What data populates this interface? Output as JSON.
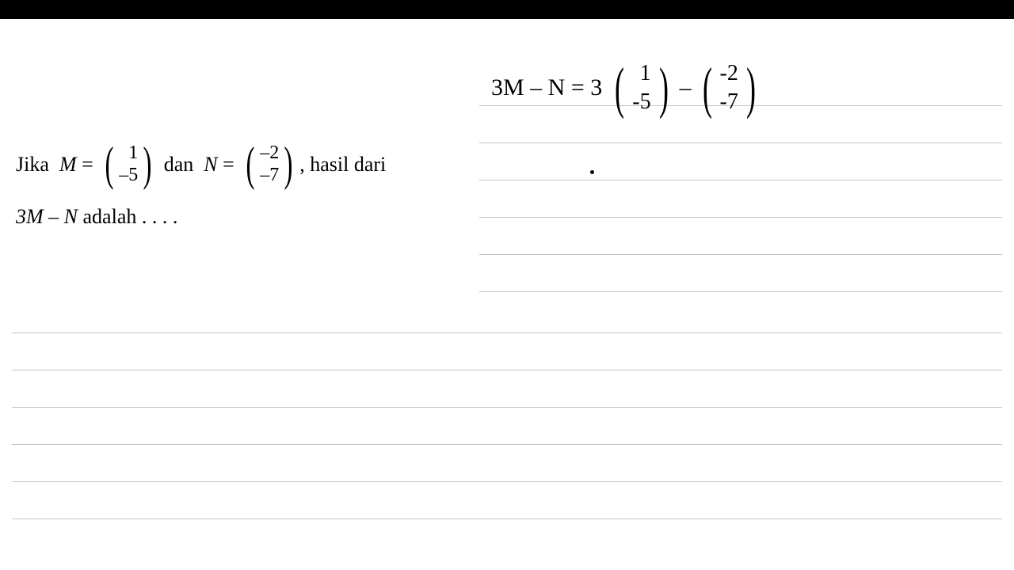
{
  "question": {
    "text_jika": "Jika",
    "var_m": "M",
    "equals": "=",
    "matrix_m_top": "1",
    "matrix_m_bottom": "–5",
    "text_dan": "dan",
    "var_n": "N",
    "matrix_n_top": "–2",
    "matrix_n_bottom": "–7",
    "text_hasil": ", hasil dari",
    "line2": "3M – N adalah . . . .",
    "font_size_main": 26,
    "font_size_matrix": 24,
    "font_color": "#000000"
  },
  "handwritten": {
    "expression": "3M – N = 3",
    "matrix1_top": "1",
    "matrix1_bottom": "-5",
    "minus": "–",
    "matrix2_top": "-2",
    "matrix2_bottom": "-7",
    "font_size": 30,
    "font_color": "#000000"
  },
  "layout": {
    "background_color": "#ffffff",
    "top_bar_color": "#000000",
    "ruled_line_color": "#c5c5c5",
    "ruled_line_spacing": 46,
    "right_rules_count": 6,
    "full_rules_count": 6
  }
}
